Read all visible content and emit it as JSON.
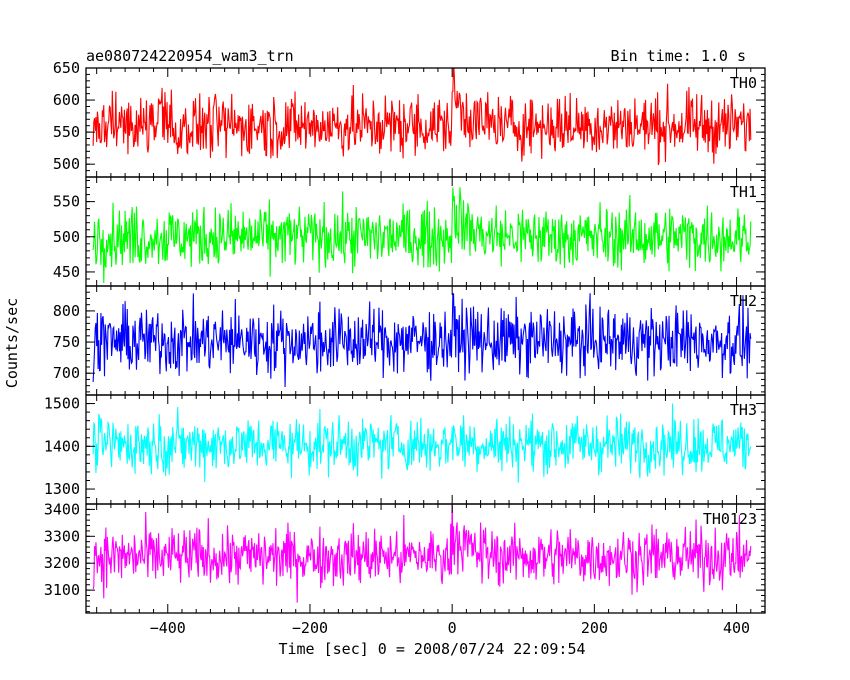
{
  "chart_data": {
    "type": "line",
    "title": "ae080724220954_wam3_trn",
    "subtitle": "Bin time: 1.0 s",
    "xlabel": "Time [sec] 0 = 2008/07/24 22:09:54",
    "ylabel": "Counts/sec",
    "xlim": [
      -515,
      440
    ],
    "x_start": -505,
    "x_end": 420,
    "x_step": 1,
    "burst_time": 0,
    "x_ticks": [
      -400,
      -200,
      0,
      200,
      400
    ],
    "x_tick_labels": [
      "−400",
      "−200",
      "0",
      "200",
      "400"
    ],
    "panels": [
      {
        "name": "TH0",
        "color": "#ff0000",
        "ylim": [
          480,
          650
        ],
        "yticks": [
          500,
          550,
          600,
          650
        ],
        "mean": 560,
        "noise": 24,
        "burst_amp": 55,
        "burst_decay": 18
      },
      {
        "name": "TH1",
        "color": "#00ff00",
        "ylim": [
          430,
          585
        ],
        "yticks": [
          450,
          500,
          550
        ],
        "mean": 500,
        "noise": 22,
        "burst_amp": 45,
        "burst_decay": 18
      },
      {
        "name": "TH2",
        "color": "#0000ff",
        "ylim": [
          665,
          840
        ],
        "yticks": [
          700,
          750,
          800
        ],
        "mean": 752,
        "noise": 27,
        "burst_amp": 20,
        "burst_decay": 15
      },
      {
        "name": "TH3",
        "color": "#00ffff",
        "ylim": [
          1265,
          1520
        ],
        "yticks": [
          1300,
          1400,
          1500
        ],
        "mean": 1405,
        "noise": 33,
        "burst_amp": 15,
        "burst_decay": 15
      },
      {
        "name": "TH0123",
        "color": "#ff00ff",
        "ylim": [
          3015,
          3420
        ],
        "yticks": [
          3100,
          3200,
          3300,
          3400
        ],
        "mean": 3225,
        "noise": 55,
        "burst_amp": 110,
        "burst_decay": 18
      }
    ]
  }
}
